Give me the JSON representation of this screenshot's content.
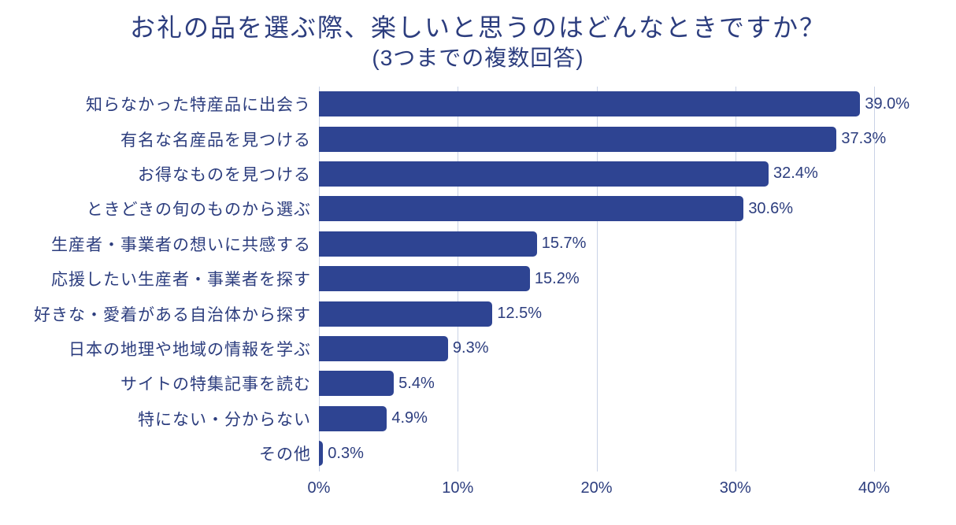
{
  "colors": {
    "bar": "#2e4492",
    "text": "#2c3d7e",
    "gridline": "#c9d2e6",
    "background": "#ffffff"
  },
  "chart_data": {
    "type": "bar",
    "orientation": "horizontal",
    "title": "お礼の品を選ぶ際、楽しいと思うのはどんなときですか？",
    "subtitle": "(3つまでの複数回答)",
    "xlabel": "",
    "ylabel": "",
    "categories": [
      "知らなかった特産品に出会う",
      "有名な名産品を見つける",
      "お得なものを見つける",
      "ときどきの旬のものから選ぶ",
      "生産者・事業者の想いに共感する",
      "応援したい生産者・事業者を探す",
      "好きな・愛着がある自治体から探す",
      "日本の地理や地域の情報を学ぶ",
      "サイトの特集記事を読む",
      "特にない・分からない",
      "その他"
    ],
    "values": [
      39.0,
      37.3,
      32.4,
      30.6,
      15.7,
      15.2,
      12.5,
      9.3,
      5.4,
      4.9,
      0.3
    ],
    "value_labels": [
      "39.0%",
      "37.3%",
      "32.4%",
      "30.6%",
      "15.7%",
      "15.2%",
      "12.5%",
      "9.3%",
      "5.4%",
      "4.9%",
      "0.3%"
    ],
    "xlim": [
      0,
      40
    ],
    "xtick_values": [
      0,
      10,
      20,
      30,
      40
    ],
    "xtick_labels": [
      "0%",
      "10%",
      "20%",
      "30%",
      "40%"
    ],
    "grid": true,
    "legend": false,
    "data_labels": "outside-end"
  }
}
